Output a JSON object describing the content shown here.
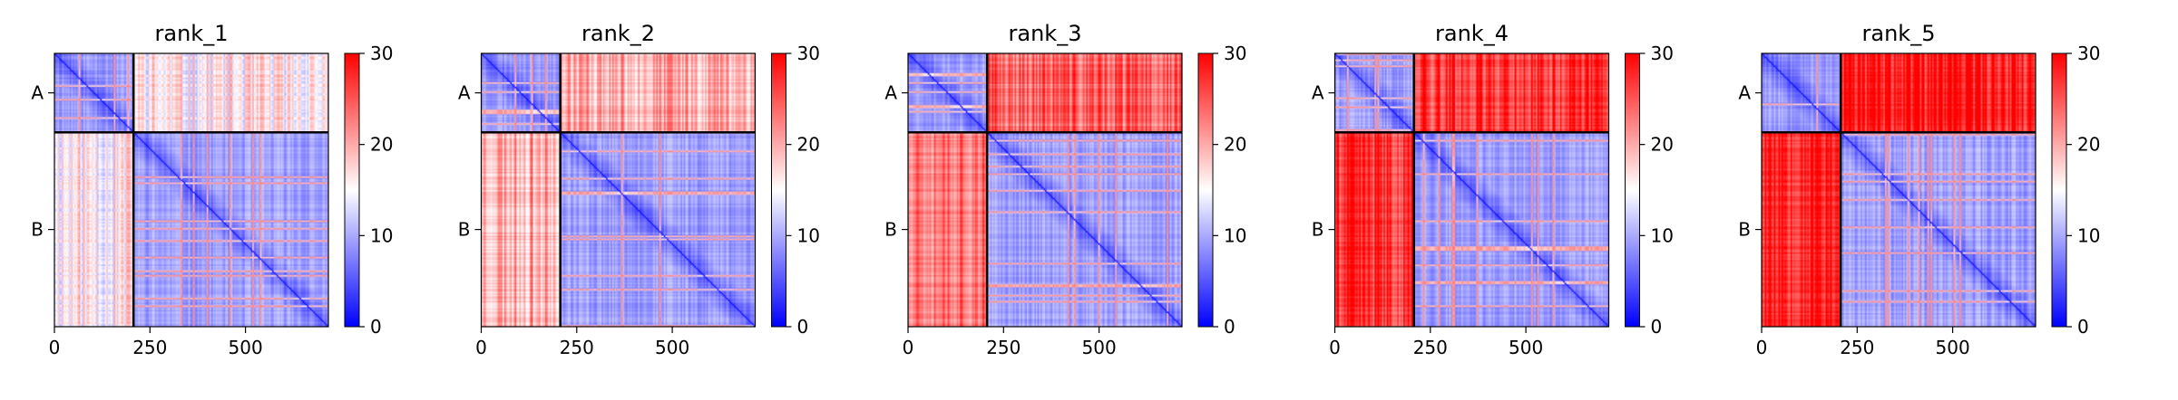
{
  "chart_data": {
    "type": "heatmap",
    "colormap": {
      "name": "bwr",
      "low": "#0000ff",
      "mid": "#ffffff",
      "high": "#ff0000"
    },
    "color_range": [
      0,
      30
    ],
    "colorbar_ticks": [
      "0",
      "10",
      "20",
      "30"
    ],
    "x_ticks": [
      {
        "value": 0,
        "label": "0"
      },
      {
        "value": 250,
        "label": "250"
      },
      {
        "value": 500,
        "label": "500"
      }
    ],
    "x_range": [
      0,
      717
    ],
    "chains": [
      {
        "label": "A",
        "start": 0,
        "end": 207
      },
      {
        "label": "B",
        "start": 207,
        "end": 717
      }
    ],
    "grid": false,
    "panels": [
      {
        "title": "rank_1",
        "inter_chain_value": 16,
        "seed": 11
      },
      {
        "title": "rank_2",
        "inter_chain_value": 20,
        "seed": 23
      },
      {
        "title": "rank_3",
        "inter_chain_value": 24,
        "seed": 37
      },
      {
        "title": "rank_4",
        "inter_chain_value": 27,
        "seed": 41
      },
      {
        "title": "rank_5",
        "inter_chain_value": 29,
        "seed": 53
      }
    ]
  }
}
